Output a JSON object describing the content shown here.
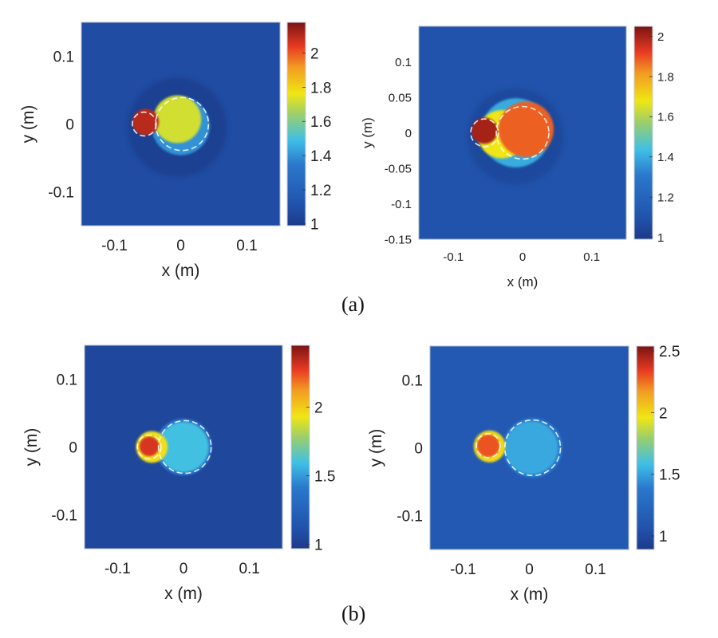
{
  "captions": {
    "a": "(a)",
    "b": "(b)"
  },
  "colors": {
    "background": "#ffffff",
    "frame": "#aab4c8",
    "boundary_dash": "#ffffff"
  },
  "colormap": "jet",
  "chart_data": [
    {
      "type": "heatmap",
      "group": "a",
      "position": "top-left",
      "xlabel": "x (m)",
      "ylabel": "y (m)",
      "xlim": [
        -0.15,
        0.15
      ],
      "ylim": [
        -0.15,
        0.15
      ],
      "xticks": [
        -0.1,
        0,
        0.1
      ],
      "xtick_labels": [
        "-0.1",
        "0",
        "0.1"
      ],
      "yticks": [
        0.1,
        0,
        -0.1
      ],
      "ytick_labels": [
        "0.1",
        "0",
        "-0.1"
      ],
      "clim": [
        0.99,
        2.18
      ],
      "cticks": [
        2,
        1.8,
        1.6,
        1.4,
        1.2,
        1
      ],
      "ctick_labels": [
        "2",
        "1.8",
        "1.6",
        "1.4",
        "1.2",
        "1"
      ],
      "background_value": 1.08,
      "features": [
        {
          "name": "halo",
          "cx": -0.005,
          "cy": -0.005,
          "r": 0.075,
          "value": 1.02
        },
        {
          "name": "large-inclusion-edge",
          "cx": 0.0,
          "cy": -0.003,
          "r": 0.044,
          "value": 1.4
        },
        {
          "name": "large-inclusion",
          "cx": -0.005,
          "cy": 0.007,
          "r": 0.036,
          "value": 1.72
        },
        {
          "name": "small-inclusion",
          "cx": -0.053,
          "cy": 0.003,
          "r": 0.02,
          "value": 2.1
        }
      ],
      "boundaries": [
        {
          "name": "small-boundary",
          "cx": -0.055,
          "cy": 0.0,
          "r": 0.018
        },
        {
          "name": "large-boundary",
          "cx": 0.002,
          "cy": 0.0,
          "r": 0.04
        }
      ]
    },
    {
      "type": "heatmap",
      "group": "a",
      "position": "top-right",
      "xlabel": "x (m)",
      "ylabel": "y (m)",
      "xlim": [
        -0.15,
        0.15
      ],
      "ylim": [
        -0.15,
        0.15
      ],
      "xticks": [
        -0.1,
        0,
        0.1
      ],
      "xtick_labels": [
        "-0.1",
        "0",
        "0.1"
      ],
      "yticks": [
        0.1,
        0.05,
        0,
        -0.05,
        -0.1,
        -0.15
      ],
      "ytick_labels": [
        "0.1",
        "0.05",
        "0",
        "-0.05",
        "-0.1",
        "-0.15"
      ],
      "clim": [
        0.99,
        2.05
      ],
      "cticks": [
        2,
        1.8,
        1.6,
        1.4,
        1.2,
        1
      ],
      "ctick_labels": [
        "2",
        "1.8",
        "1.6",
        "1.4",
        "1.2",
        "1"
      ],
      "background_value": 1.1,
      "features": [
        {
          "name": "halo",
          "cx": -0.01,
          "cy": -0.005,
          "r": 0.07,
          "value": 1.05
        },
        {
          "name": "large-inclusion-edge",
          "cx": -0.01,
          "cy": 0.0,
          "r": 0.05,
          "value": 1.4
        },
        {
          "name": "bridge",
          "cx": -0.03,
          "cy": -0.002,
          "r": 0.035,
          "value": 1.68
        },
        {
          "name": "large-inclusion",
          "cx": 0.005,
          "cy": 0.005,
          "r": 0.04,
          "value": 1.88
        },
        {
          "name": "small-inclusion",
          "cx": -0.055,
          "cy": 0.003,
          "r": 0.019,
          "value": 2.0
        }
      ],
      "boundaries": [
        {
          "name": "small-boundary",
          "cx": -0.055,
          "cy": 0.0,
          "r": 0.02
        },
        {
          "name": "large-boundary",
          "cx": 0.0,
          "cy": 0.0,
          "r": 0.038
        }
      ]
    },
    {
      "type": "heatmap",
      "group": "b",
      "position": "bottom-left",
      "xlabel": "x (m)",
      "ylabel": "y (m)",
      "xlim": [
        -0.15,
        0.15
      ],
      "ylim": [
        -0.15,
        0.15
      ],
      "xticks": [
        -0.1,
        0,
        0.1
      ],
      "xtick_labels": [
        "-0.1",
        "0",
        "0.1"
      ],
      "yticks": [
        0.1,
        0,
        -0.1
      ],
      "ytick_labels": [
        "0.1",
        "0",
        "-0.1"
      ],
      "clim": [
        0.97,
        2.45
      ],
      "cticks": [
        2,
        1.5,
        1
      ],
      "ctick_labels": [
        "2",
        "1.5",
        "1"
      ],
      "background_value": 1.05,
      "features": [
        {
          "name": "large-inclusion-edge",
          "cx": 0.0,
          "cy": 0.0,
          "r": 0.043,
          "value": 1.42
        },
        {
          "name": "large-inclusion",
          "cx": 0.0,
          "cy": 0.0,
          "r": 0.038,
          "value": 1.6
        },
        {
          "name": "small-inclusion-ring",
          "cx": -0.048,
          "cy": 0.0,
          "r": 0.024,
          "value": 1.95
        },
        {
          "name": "small-inclusion",
          "cx": -0.052,
          "cy": 0.001,
          "r": 0.015,
          "value": 2.3
        }
      ],
      "boundaries": [
        {
          "name": "small-boundary",
          "cx": -0.052,
          "cy": 0.0,
          "r": 0.018
        },
        {
          "name": "large-boundary",
          "cx": 0.002,
          "cy": 0.0,
          "r": 0.04
        }
      ]
    },
    {
      "type": "heatmap",
      "group": "b",
      "position": "bottom-right",
      "xlabel": "x (m)",
      "ylabel": "y (m)",
      "xlim": [
        -0.15,
        0.15
      ],
      "ylim": [
        -0.15,
        0.15
      ],
      "xticks": [
        -0.1,
        0,
        0.1
      ],
      "xtick_labels": [
        "-0.1",
        "0",
        "0.1"
      ],
      "yticks": [
        0.1,
        0,
        -0.1
      ],
      "ytick_labels": [
        "0.1",
        "0",
        "-0.1"
      ],
      "clim": [
        0.89,
        2.54
      ],
      "cticks": [
        2.5,
        2,
        1.5,
        1
      ],
      "ctick_labels": [
        "2.5",
        "2",
        "1.5",
        "1"
      ],
      "background_value": 1.12,
      "features": [
        {
          "name": "large-inclusion-edge",
          "cx": 0.005,
          "cy": 0.0,
          "r": 0.045,
          "value": 1.4
        },
        {
          "name": "large-inclusion",
          "cx": 0.003,
          "cy": 0.0,
          "r": 0.04,
          "value": 1.52
        },
        {
          "name": "small-inclusion-ring",
          "cx": -0.06,
          "cy": 0.002,
          "r": 0.024,
          "value": 2.0
        },
        {
          "name": "small-inclusion",
          "cx": -0.062,
          "cy": 0.003,
          "r": 0.017,
          "value": 2.3
        }
      ],
      "boundaries": [
        {
          "name": "small-boundary",
          "cx": -0.062,
          "cy": 0.003,
          "r": 0.018
        },
        {
          "name": "large-boundary",
          "cx": 0.005,
          "cy": 0.0,
          "r": 0.042
        }
      ]
    }
  ]
}
